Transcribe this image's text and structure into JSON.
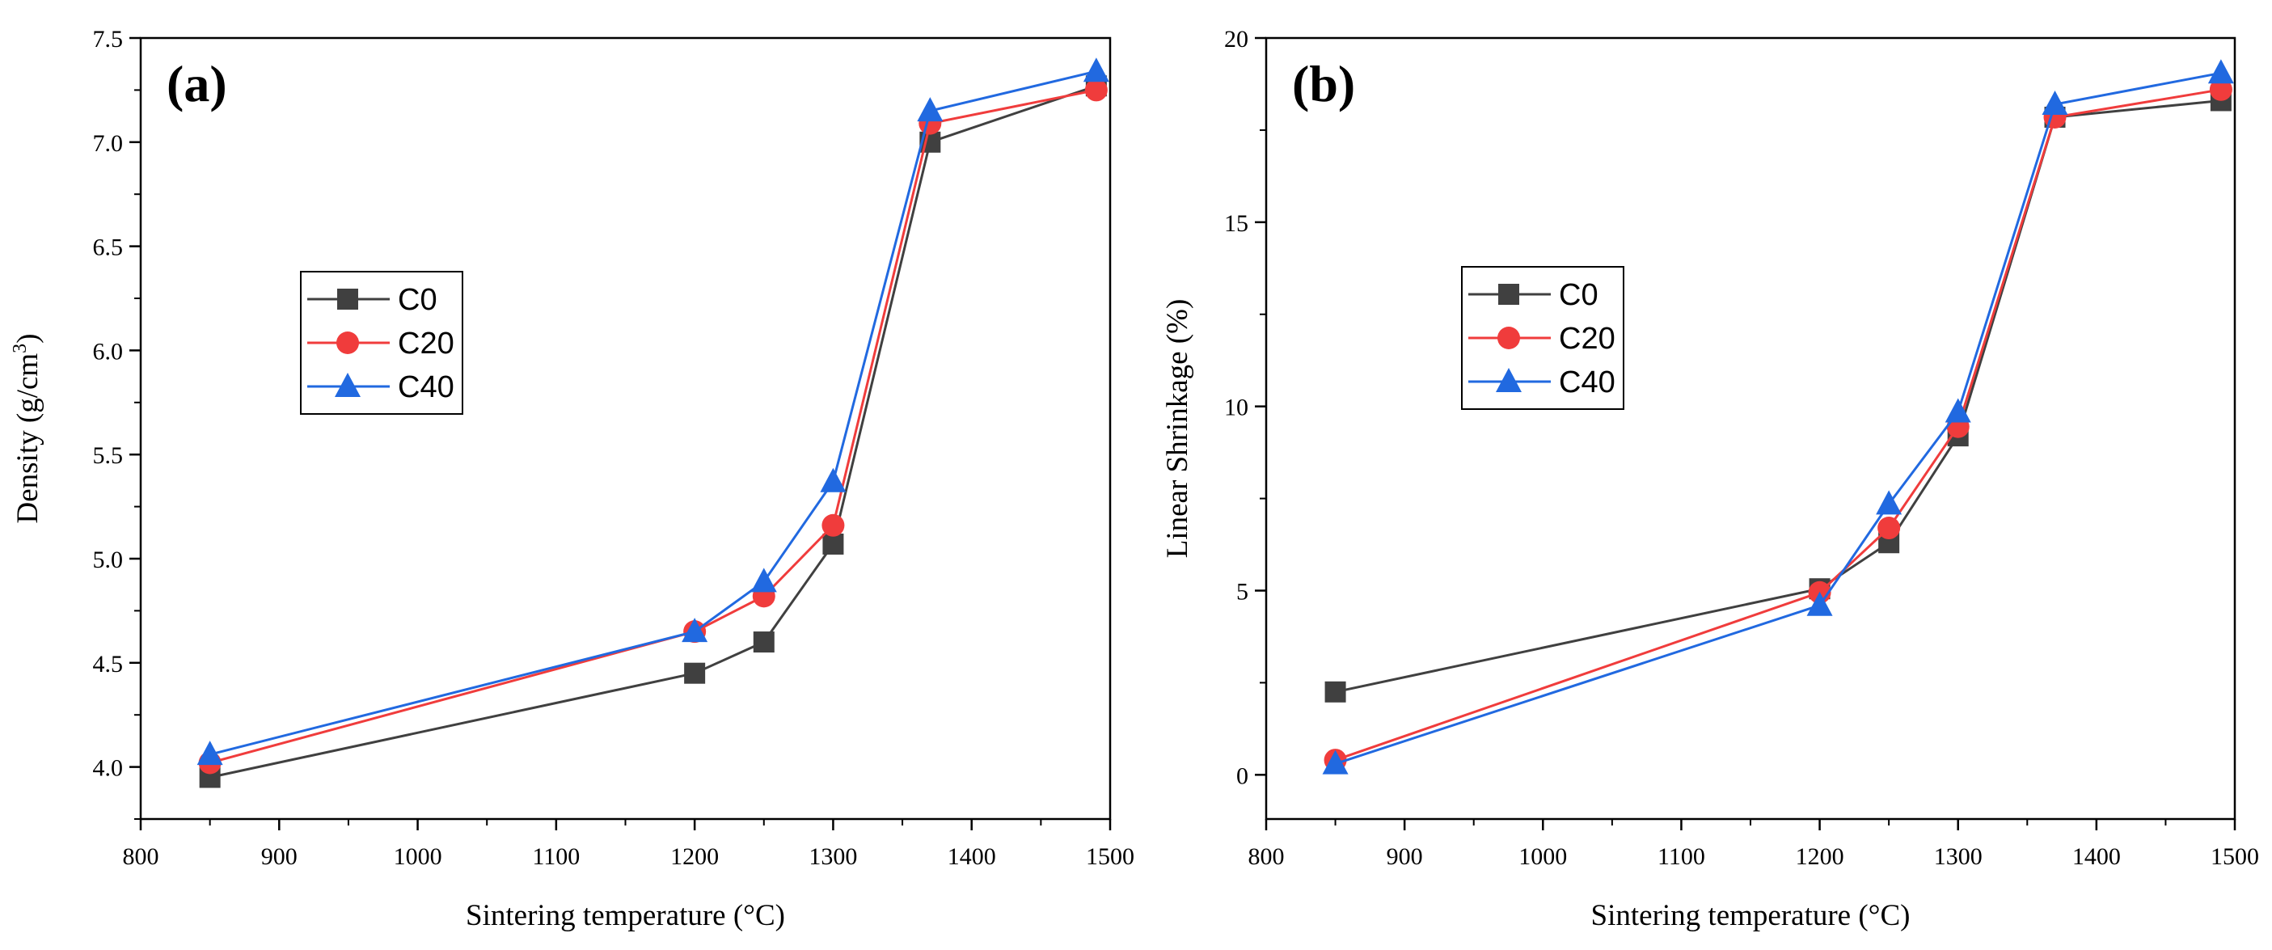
{
  "chart_data": [
    {
      "type": "line",
      "panel_label": "(a)",
      "xlabel": "Sintering temperature (°C)",
      "ylabel": "Density (g/cm",
      "ylabel_sup": "3",
      "ylabel_close": ")",
      "xlim": [
        800,
        1500
      ],
      "ylim": [
        3.75,
        7.5
      ],
      "xticks": [
        800,
        900,
        1000,
        1100,
        1200,
        1300,
        1400,
        1500
      ],
      "yticks": [
        "4.0",
        "4.5",
        "5.0",
        "5.5",
        "6.0",
        "6.5",
        "7.0",
        "7.5"
      ],
      "x": [
        850,
        1200,
        1250,
        1300,
        1370,
        1490
      ],
      "legend": {
        "position": "middle-left"
      },
      "series": [
        {
          "name": "C0",
          "marker": "square",
          "color": "#404040",
          "values": [
            3.95,
            4.45,
            4.6,
            5.07,
            7.0,
            7.27
          ]
        },
        {
          "name": "C20",
          "marker": "circle",
          "color": "#f03c3c",
          "values": [
            4.02,
            4.65,
            4.82,
            5.16,
            7.09,
            7.25
          ]
        },
        {
          "name": "C40",
          "marker": "triangle",
          "color": "#2169e0",
          "values": [
            4.06,
            4.65,
            4.89,
            5.37,
            7.15,
            7.34
          ]
        }
      ]
    },
    {
      "type": "line",
      "panel_label": "(b)",
      "xlabel": "Sintering temperature (°C)",
      "ylabel": "Linear Shrinkage (%)",
      "xlim": [
        800,
        1500
      ],
      "ylim": [
        -1.2,
        20
      ],
      "xticks": [
        800,
        900,
        1000,
        1100,
        1200,
        1300,
        1400,
        1500
      ],
      "yticks": [
        "0",
        "5",
        "10",
        "15",
        "20"
      ],
      "x": [
        850,
        1200,
        1250,
        1300,
        1370,
        1490
      ],
      "legend": {
        "position": "middle-left"
      },
      "series": [
        {
          "name": "C0",
          "marker": "square",
          "color": "#404040",
          "values": [
            2.25,
            5.05,
            6.3,
            9.2,
            17.85,
            18.3
          ]
        },
        {
          "name": "C20",
          "marker": "circle",
          "color": "#f03c3c",
          "values": [
            0.4,
            4.95,
            6.7,
            9.45,
            17.85,
            18.6
          ]
        },
        {
          "name": "C40",
          "marker": "triangle",
          "color": "#2169e0",
          "values": [
            0.3,
            4.6,
            7.35,
            9.85,
            18.2,
            19.05
          ]
        }
      ]
    }
  ]
}
